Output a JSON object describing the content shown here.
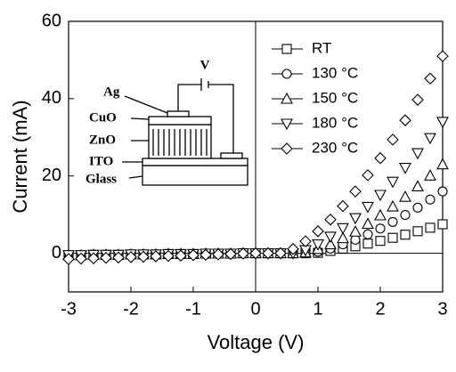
{
  "chart_data": {
    "type": "scatter",
    "x_label": "Voltage (V)",
    "y_label": "Current (mA)",
    "xlim": [
      -3,
      3
    ],
    "xticks": [
      -3,
      -2,
      -1,
      0,
      1,
      2,
      3
    ],
    "ylim": [
      -10,
      60
    ],
    "yticks": [
      0,
      20,
      40,
      60
    ],
    "zero_lines": true,
    "x": [
      -3,
      -2.8,
      -2.6,
      -2.4,
      -2.2,
      -2,
      -1.8,
      -1.6,
      -1.4,
      -1.2,
      -1,
      -0.8,
      -0.6,
      -0.4,
      -0.2,
      0,
      0.2,
      0.4,
      0.6,
      0.8,
      1,
      1.2,
      1.4,
      1.6,
      1.8,
      2,
      2.2,
      2.4,
      2.6,
      2.8,
      3
    ],
    "series": [
      {
        "name": "RT",
        "color": "#000000",
        "marker": "square",
        "values": [
          -0.5,
          -0.5,
          -0.4,
          -0.4,
          -0.4,
          -0.3,
          -0.3,
          -0.3,
          -0.2,
          -0.2,
          -0.2,
          -0.1,
          -0.1,
          -0.1,
          0,
          0,
          0,
          0,
          0,
          0,
          0.1,
          0.6,
          1.2,
          1.8,
          2.5,
          3.2,
          4.0,
          4.8,
          5.7,
          6.6,
          7.5
        ]
      },
      {
        "name": "130 °C",
        "color": "#000000",
        "marker": "circle",
        "values": [
          -0.5,
          -0.5,
          -0.4,
          -0.4,
          -0.4,
          -0.3,
          -0.3,
          -0.3,
          -0.2,
          -0.2,
          -0.2,
          -0.1,
          -0.1,
          -0.1,
          0,
          0,
          0,
          0,
          0,
          0,
          0.4,
          1.2,
          2.3,
          3.5,
          4.9,
          6.4,
          8.1,
          9.9,
          11.8,
          13.9,
          16
        ]
      },
      {
        "name": "150 °C",
        "color": "#000000",
        "marker": "triangle-up",
        "values": [
          -0.5,
          -0.5,
          -0.4,
          -0.4,
          -0.4,
          -0.3,
          -0.3,
          -0.3,
          -0.2,
          -0.2,
          -0.2,
          -0.1,
          -0.1,
          -0.1,
          0,
          0,
          0,
          0,
          0,
          0.2,
          1.1,
          2.3,
          3.9,
          5.6,
          7.6,
          9.8,
          12.1,
          14.6,
          17.3,
          20.1,
          23
        ]
      },
      {
        "name": "180 °C",
        "color": "#000000",
        "marker": "triangle-down",
        "values": [
          -0.5,
          -0.5,
          -0.4,
          -0.4,
          -0.4,
          -0.3,
          -0.3,
          -0.3,
          -0.2,
          -0.2,
          -0.2,
          -0.1,
          -0.1,
          -0.1,
          0,
          0,
          0,
          0,
          0,
          0.8,
          2.3,
          4.3,
          6.5,
          9.1,
          12.0,
          15.1,
          18.5,
          22.1,
          25.9,
          29.8,
          34
        ]
      },
      {
        "name": "230 °C",
        "color": "#000000",
        "marker": "diamond",
        "values": [
          -1.5,
          -1.4,
          -1.3,
          -1.2,
          -1.1,
          -1,
          -0.9,
          -0.8,
          -0.7,
          -0.6,
          -0.5,
          -0.4,
          -0.3,
          -0.2,
          -0.1,
          0,
          0,
          0,
          1.1,
          3.1,
          5.7,
          8.7,
          12.2,
          16.0,
          20.2,
          24.6,
          29.4,
          34.4,
          39.7,
          45.2,
          51
        ]
      }
    ],
    "annotations": [
      "V",
      "Ag",
      "CuO",
      "ZnO",
      "ITO",
      "Glass"
    ]
  }
}
